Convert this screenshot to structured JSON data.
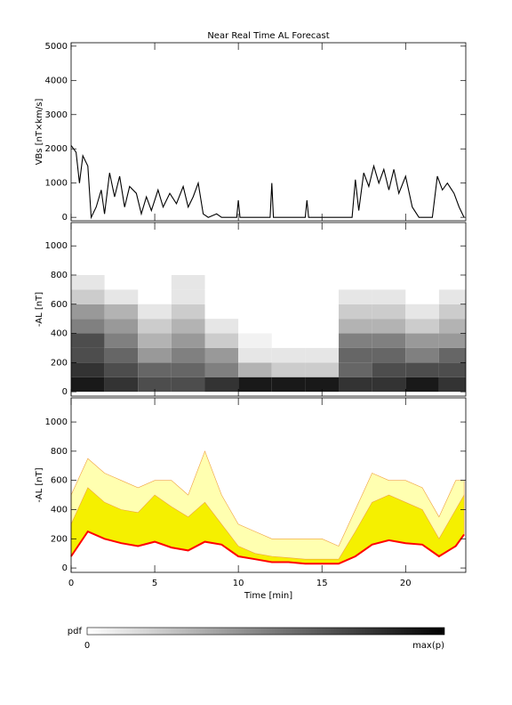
{
  "chart_data": [
    {
      "type": "line",
      "title": "Near Real Time AL Forecast",
      "ylabel": "VBs [nT×km/s]",
      "color": "#000000",
      "x": [
        0,
        0.3,
        0.5,
        0.7,
        1.0,
        1.2,
        1.5,
        1.8,
        2.0,
        2.3,
        2.6,
        2.9,
        3.2,
        3.5,
        3.9,
        4.2,
        4.5,
        4.8,
        5.2,
        5.5,
        5.9,
        6.3,
        6.7,
        7.0,
        7.3,
        7.6,
        7.9,
        8.2,
        8.7,
        9.0,
        9.9,
        10.0,
        10.1,
        11.9,
        12.0,
        12.1,
        14.0,
        14.1,
        14.2,
        16.8,
        17.0,
        17.2,
        17.5,
        17.8,
        18.1,
        18.4,
        18.7,
        19.0,
        19.3,
        19.6,
        20.0,
        20.4,
        20.8,
        21.6,
        21.9,
        22.2,
        22.5,
        22.9,
        23.2,
        23.5
      ],
      "values": [
        2100,
        1900,
        1000,
        1800,
        1500,
        0,
        300,
        800,
        100,
        1300,
        600,
        1200,
        300,
        900,
        700,
        100,
        600,
        200,
        800,
        300,
        700,
        400,
        900,
        300,
        600,
        1000,
        100,
        0,
        100,
        0,
        0,
        500,
        0,
        0,
        1000,
        0,
        0,
        500,
        0,
        0,
        1100,
        200,
        1300,
        900,
        1500,
        1000,
        1400,
        800,
        1400,
        700,
        1200,
        300,
        0,
        0,
        1200,
        800,
        1000,
        700,
        300,
        0
      ],
      "xlim": [
        0,
        23.6
      ],
      "ylim": [
        -100,
        5100
      ],
      "yticks": [
        0,
        1000,
        2000,
        3000,
        4000,
        5000
      ]
    },
    {
      "type": "heatmap",
      "ylabel": "-AL [nT]",
      "xbins": [
        0,
        2,
        4,
        6,
        8,
        10,
        12,
        14,
        16,
        18,
        20,
        22,
        24
      ],
      "ybins": [
        0,
        100,
        200,
        300,
        400,
        500,
        600,
        700,
        800
      ],
      "values": [
        [
          0.9,
          0.8,
          0.7,
          0.7,
          0.8,
          0.9,
          0.9,
          0.9,
          0.8,
          0.8,
          0.9,
          0.8
        ],
        [
          0.8,
          0.7,
          0.6,
          0.6,
          0.5,
          0.3,
          0.2,
          0.2,
          0.6,
          0.7,
          0.7,
          0.7
        ],
        [
          0.7,
          0.6,
          0.4,
          0.5,
          0.4,
          0.1,
          0.1,
          0.1,
          0.6,
          0.6,
          0.5,
          0.6
        ],
        [
          0.7,
          0.5,
          0.3,
          0.4,
          0.2,
          0.05,
          0,
          0,
          0.5,
          0.5,
          0.4,
          0.4
        ],
        [
          0.5,
          0.4,
          0.2,
          0.3,
          0.1,
          0,
          0,
          0,
          0.3,
          0.3,
          0.2,
          0.3
        ],
        [
          0.4,
          0.3,
          0.1,
          0.2,
          0,
          0,
          0,
          0,
          0.2,
          0.2,
          0.1,
          0.2
        ],
        [
          0.2,
          0.1,
          0,
          0.1,
          0,
          0,
          0,
          0,
          0.1,
          0.1,
          0,
          0.1
        ],
        [
          0.1,
          0,
          0,
          0.1,
          0,
          0,
          0,
          0,
          0,
          0,
          0,
          0
        ]
      ],
      "xlim": [
        0,
        23.6
      ],
      "ylim": [
        -30,
        1160
      ],
      "yticks": [
        0,
        200,
        400,
        600,
        800,
        1000
      ]
    },
    {
      "type": "area",
      "ylabel": "-AL [nT]",
      "xlabel": "Time [min]",
      "x": [
        0,
        1,
        2,
        3,
        4,
        5,
        6,
        7,
        8,
        9,
        10,
        11,
        12,
        13,
        14,
        15,
        16,
        17,
        18,
        19,
        20,
        21,
        22,
        23,
        23.5
      ],
      "series": [
        {
          "color": "#ffffb0",
          "values": [
            500,
            750,
            650,
            600,
            550,
            600,
            600,
            500,
            800,
            500,
            300,
            250,
            200,
            200,
            200,
            200,
            150,
            400,
            650,
            600,
            600,
            550,
            350,
            600,
            600
          ]
        },
        {
          "color": "#f5f000",
          "values": [
            300,
            550,
            450,
            400,
            380,
            500,
            420,
            350,
            450,
            300,
            150,
            100,
            80,
            70,
            60,
            60,
            60,
            250,
            450,
            500,
            450,
            400,
            200,
            400,
            500
          ]
        },
        {
          "color": "#ff0000",
          "values": [
            80,
            250,
            200,
            170,
            150,
            180,
            140,
            120,
            180,
            160,
            80,
            60,
            40,
            40,
            30,
            30,
            30,
            80,
            160,
            190,
            170,
            160,
            80,
            150,
            230
          ]
        }
      ],
      "xlim": [
        0,
        23.6
      ],
      "ylim": [
        -30,
        1165
      ],
      "yticks": [
        0,
        200,
        400,
        600,
        800,
        1000
      ],
      "xticks": [
        0,
        5,
        10,
        15,
        20
      ]
    }
  ],
  "colorbar": {
    "label": "pdf",
    "min_label": "0",
    "max_label": "max(p)"
  }
}
